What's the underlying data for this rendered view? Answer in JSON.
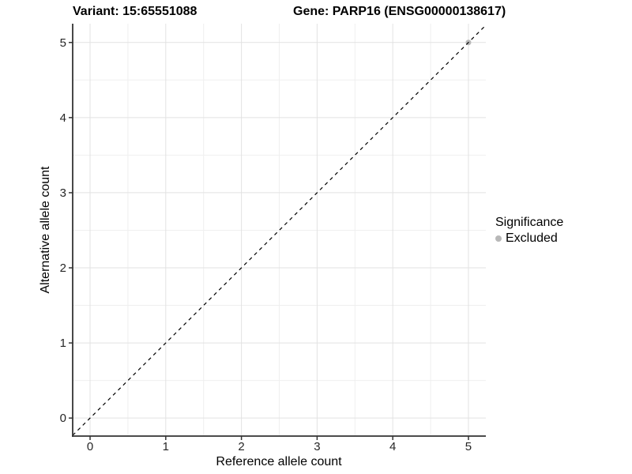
{
  "chart_data": {
    "type": "scatter",
    "titles": {
      "left": "Variant: 15:65551088",
      "right": "Gene: PARP16 (ENSG00000138617)"
    },
    "xlabel": "Reference allele count",
    "ylabel": "Alternative allele count",
    "x_ticks": [
      0,
      1,
      2,
      3,
      4,
      5
    ],
    "y_ticks": [
      0,
      1,
      2,
      3,
      4,
      5
    ],
    "xlim": [
      -0.23,
      5.23
    ],
    "ylim": [
      -0.24,
      5.25
    ],
    "grid": {
      "major": true,
      "minor": true
    },
    "series": [
      {
        "name": "Excluded",
        "color": "#b8b8b8",
        "points": [
          [
            5,
            5
          ]
        ]
      }
    ],
    "reference_line": {
      "kind": "identity",
      "style": "dashed",
      "color": "#000000"
    },
    "legend": {
      "title": "Significance",
      "position": "right",
      "items": [
        {
          "label": "Excluded",
          "color": "#b8b8b8",
          "marker": "circle"
        }
      ]
    }
  },
  "colors": {
    "background": "#ffffff",
    "grid_major": "#e2e2e2",
    "grid_minor": "#efefef",
    "axis": "#333333",
    "tick_text": "#262626"
  }
}
